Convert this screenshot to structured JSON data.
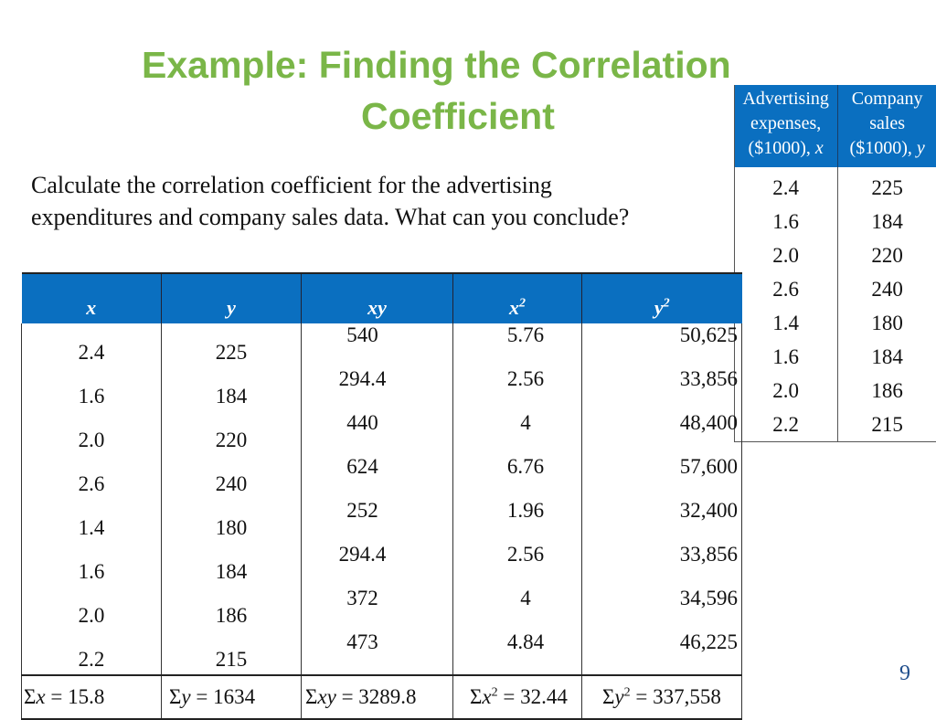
{
  "slide": {
    "title_line1": "Example: Finding the Correlation",
    "title_line2": "Coefficient",
    "prompt_line1": "Calculate the correlation coefficient for the advertising",
    "prompt_line2": "expenditures and company sales data. What can you conclude?",
    "page_number": "9",
    "accent_color": "#7ab648",
    "header_color": "#0a6fc0"
  },
  "side_table": {
    "headers": [
      {
        "l1": "Advertising",
        "l2": "expenses,",
        "l3": "($1000),",
        "var": "x"
      },
      {
        "l1": "Company",
        "l2": "sales",
        "l3": "($1000),",
        "var": "y"
      }
    ],
    "rows": [
      [
        "2.4",
        "225"
      ],
      [
        "1.6",
        "184"
      ],
      [
        "2.0",
        "220"
      ],
      [
        "2.6",
        "240"
      ],
      [
        "1.4",
        "180"
      ],
      [
        "1.6",
        "184"
      ],
      [
        "2.0",
        "186"
      ],
      [
        "2.2",
        "215"
      ]
    ]
  },
  "main_table": {
    "headers": [
      "x",
      "y",
      "xy",
      "x",
      "y"
    ],
    "header_sups": [
      "",
      "",
      "",
      "2",
      "2"
    ],
    "rows": [
      [
        "2.4",
        "225",
        "540",
        "5.76",
        "50,625"
      ],
      [
        "1.6",
        "184",
        "294.4",
        "2.56",
        "33,856"
      ],
      [
        "2.0",
        "220",
        "440",
        "4",
        "48,400"
      ],
      [
        "2.6",
        "240",
        "624",
        "6.76",
        "57,600"
      ],
      [
        "1.4",
        "180",
        "252",
        "1.96",
        "32,400"
      ],
      [
        "1.6",
        "184",
        "294.4",
        "2.56",
        "33,856"
      ],
      [
        "2.0",
        "186",
        "372",
        "4",
        "34,596"
      ],
      [
        "2.2",
        "215",
        "473",
        "4.84",
        "46,225"
      ]
    ],
    "sums": [
      {
        "sym": "Σ",
        "var": "x",
        "sup": "",
        "val": " = 15.8"
      },
      {
        "sym": "Σ",
        "var": "y",
        "sup": "",
        "val": " = 1634"
      },
      {
        "sym": "Σ",
        "var": "xy",
        "sup": "",
        "val": " = 3289.8"
      },
      {
        "sym": "Σ",
        "var": "x",
        "sup": "2",
        "val": " = 32.44"
      },
      {
        "sym": "Σ",
        "var": "y",
        "sup": "2",
        "val": " = 337,558"
      }
    ]
  }
}
